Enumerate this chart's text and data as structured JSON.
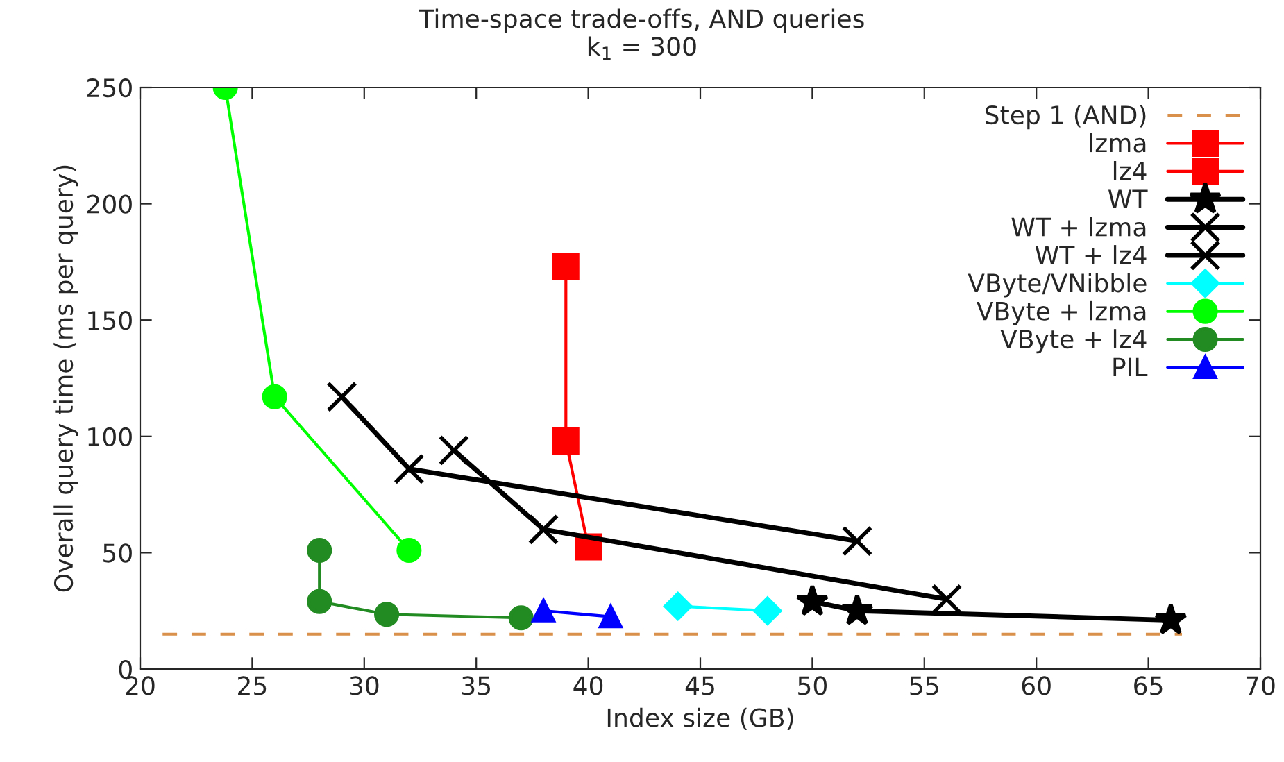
{
  "chart_data": {
    "type": "line",
    "title": "Time-space trade-offs, AND queries",
    "subtitle": "k$_{1}$ = 300",
    "xlabel": "Index size (GB)",
    "ylabel": "Overall query time (ms per query)",
    "xlim": [
      20,
      70
    ],
    "xticks": [
      20,
      25,
      30,
      35,
      40,
      45,
      50,
      55,
      60,
      65,
      70
    ],
    "ylim": [
      0,
      250
    ],
    "yticks": [
      0,
      50,
      100,
      150,
      200,
      250
    ],
    "grid": false,
    "legend": "top right",
    "series": [
      {
        "name": "Step 1 (AND)",
        "color": "#d9904a",
        "x": [
          21,
          66.5
        ],
        "values": [
          15,
          15
        ],
        "line_style": "dashed",
        "marker": "none"
      },
      {
        "name": "lzma",
        "color": "#ff0000",
        "marker": "square"
      },
      {
        "name": "lz4",
        "color": "#ff0000",
        "x": [
          39,
          39,
          40
        ],
        "values": [
          173,
          98,
          52.5
        ],
        "marker": "square"
      },
      {
        "name": "WT",
        "color": "#000000",
        "x": [
          50,
          52,
          66
        ],
        "values": [
          29,
          25,
          21
        ],
        "marker": "star"
      },
      {
        "name": "WT + lzma",
        "color": "#000000",
        "x": [
          29,
          32,
          52
        ],
        "values": [
          117,
          86,
          55
        ],
        "marker": "cross"
      },
      {
        "name": "WT + lz4",
        "color": "#000000",
        "x": [
          34,
          38,
          56
        ],
        "values": [
          94,
          60,
          30
        ],
        "marker": "cross"
      },
      {
        "name": "VByte/VNibble",
        "color": "#00ffff",
        "x": [
          44,
          48
        ],
        "values": [
          27,
          25
        ],
        "marker": "diamond"
      },
      {
        "name": "VByte + lzma",
        "color": "#00ff00",
        "x": [
          23.8,
          26,
          32
        ],
        "values": [
          250,
          117,
          51
        ],
        "marker": "circle"
      },
      {
        "name": "VByte + lz4",
        "color": "#228b22",
        "x": [
          28,
          28,
          31,
          37
        ],
        "values": [
          51,
          29,
          23.5,
          22
        ],
        "marker": "circle"
      },
      {
        "name": "PIL",
        "color": "#0000ff",
        "x": [
          38,
          41
        ],
        "values": [
          25,
          22.5
        ],
        "marker": "triangle"
      }
    ]
  }
}
